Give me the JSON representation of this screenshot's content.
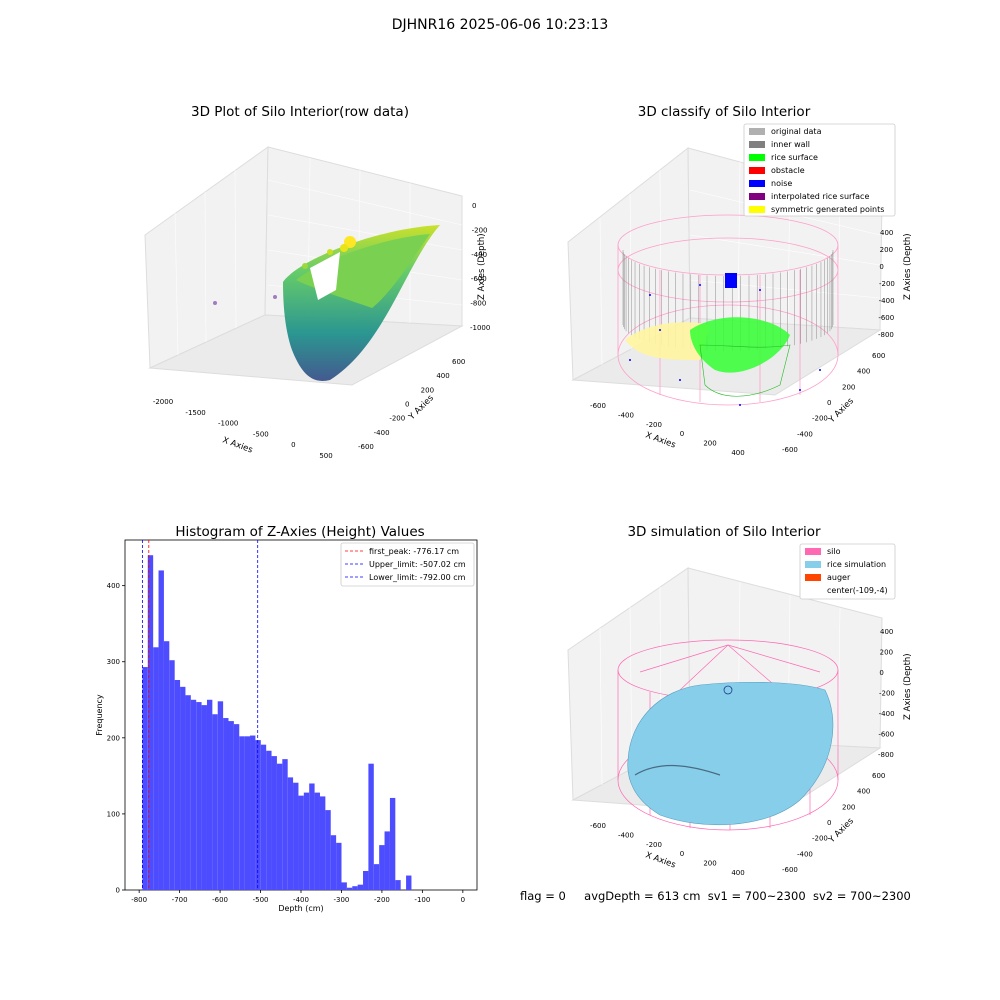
{
  "figure": {
    "suptitle": "DJHNR16 2025-06-06 10:23:13"
  },
  "status_line": {
    "flag": "flag = 0",
    "avg_depth": "avgDepth = 613 cm",
    "sv1": "sv1 = 700~2300",
    "sv2": "sv2 = 700~2300"
  },
  "colors": {
    "histogram": "#4d4dff",
    "first_peak_line": "#ff0000",
    "limit_lines": "#0000ff",
    "original_data": "#b0b0b0",
    "inner_wall": "#808080",
    "rice_surface": "#00ff00",
    "obstacle": "#ff0000",
    "noise": "#0000ff",
    "interpolated_rice_surface": "#800080",
    "symmetric_generated_points": "#ffff00",
    "silo": "#ff69b4",
    "rice_simulation": "#87ceeb",
    "auger": "#ff4500"
  },
  "chart_data": [
    {
      "type": "scatter",
      "subtype": "3d",
      "title": "3D Plot of Silo Interior(row data)",
      "xlabel": "X Axies",
      "ylabel": "Y Axies",
      "zlabel": "Z Axies (Depth)",
      "x_ticks": [
        "-2000",
        "-1500",
        "-1000",
        "-500",
        "0",
        "500"
      ],
      "y_ticks": [
        "-600",
        "-400",
        "-200",
        "0",
        "200",
        "400",
        "600"
      ],
      "z_ticks": [
        "0",
        "-200",
        "-400",
        "-600",
        "-800",
        "-1000"
      ],
      "colormap": "viridis",
      "note": "bowl-shaped point cloud colored by depth"
    },
    {
      "type": "scatter",
      "subtype": "3d",
      "title": "3D classify of Silo Interior",
      "xlabel": "X Axies",
      "ylabel": "Y Axies",
      "zlabel": "Z Axies (Depth)",
      "x_ticks": [
        "-600",
        "-400",
        "-200",
        "0",
        "200",
        "400"
      ],
      "y_ticks": [
        "-600",
        "-400",
        "-200",
        "0",
        "200",
        "400",
        "600"
      ],
      "z_ticks": [
        "400",
        "200",
        "0",
        "-200",
        "-400",
        "-600",
        "-800"
      ],
      "legend": [
        {
          "label": "original data",
          "color": "#b0b0b0"
        },
        {
          "label": "inner wall",
          "color": "#808080"
        },
        {
          "label": "rice surface",
          "color": "#00ff00"
        },
        {
          "label": "obstacle",
          "color": "#ff0000"
        },
        {
          "label": "noise",
          "color": "#0000ff"
        },
        {
          "label": "interpolated rice surface",
          "color": "#800080"
        },
        {
          "label": "symmetric generated points",
          "color": "#ffff00"
        }
      ],
      "legend_position": "top-right"
    },
    {
      "type": "bar",
      "subtype": "histogram",
      "title": "Histogram of Z-Axies (Height) Values",
      "xlabel": "Depth (cm)",
      "ylabel": "Frequency",
      "xlim": [
        -835,
        35
      ],
      "ylim": [
        0,
        460
      ],
      "x_ticks": [
        -800,
        -700,
        -600,
        -500,
        -400,
        -300,
        -200,
        -100,
        0
      ],
      "y_ticks": [
        0,
        100,
        200,
        300,
        400
      ],
      "bins": {
        "start": -792,
        "width": 13.3,
        "values": [
          293,
          440,
          319,
          420,
          327,
          302,
          276,
          267,
          256,
          250,
          247,
          243,
          250,
          231,
          248,
          226,
          222,
          218,
          202,
          202,
          203,
          197,
          191,
          183,
          176,
          166,
          172,
          148,
          141,
          124,
          128,
          140,
          128,
          123,
          105,
          72,
          62,
          10,
          3,
          5,
          7,
          25,
          166,
          34,
          59,
          77,
          121,
          13,
          0,
          19
        ]
      },
      "lines": [
        {
          "label": "first_peak: -776.17 cm",
          "x": -776.17,
          "style": "dashed",
          "color": "#ff0000"
        },
        {
          "label": "Upper_limit: -507.02 cm",
          "x": -507.02,
          "style": "dashed",
          "color": "#0000ff"
        },
        {
          "label": "Lower_limit: -792.00 cm",
          "x": -792.0,
          "style": "dashed",
          "color": "#0000ff"
        }
      ],
      "legend_position": "top-right"
    },
    {
      "type": "area",
      "subtype": "3d-surface",
      "title": "3D simulation of Silo Interior",
      "xlabel": "X Axies",
      "ylabel": "Y Axies",
      "zlabel": "Z Axies (Depth)",
      "x_ticks": [
        "-600",
        "-400",
        "-200",
        "0",
        "200",
        "400"
      ],
      "y_ticks": [
        "-600",
        "-400",
        "-200",
        "0",
        "200",
        "400",
        "600"
      ],
      "z_ticks": [
        "400",
        "200",
        "0",
        "-200",
        "-400",
        "-600",
        "-800"
      ],
      "legend": [
        {
          "label": "silo",
          "color": "#ff69b4"
        },
        {
          "label": "rice simulation",
          "color": "#87ceeb"
        },
        {
          "label": "auger",
          "color": "#ff4500"
        },
        {
          "label": "center(-109,-4)",
          "color": ""
        }
      ],
      "legend_position": "top-right"
    }
  ]
}
